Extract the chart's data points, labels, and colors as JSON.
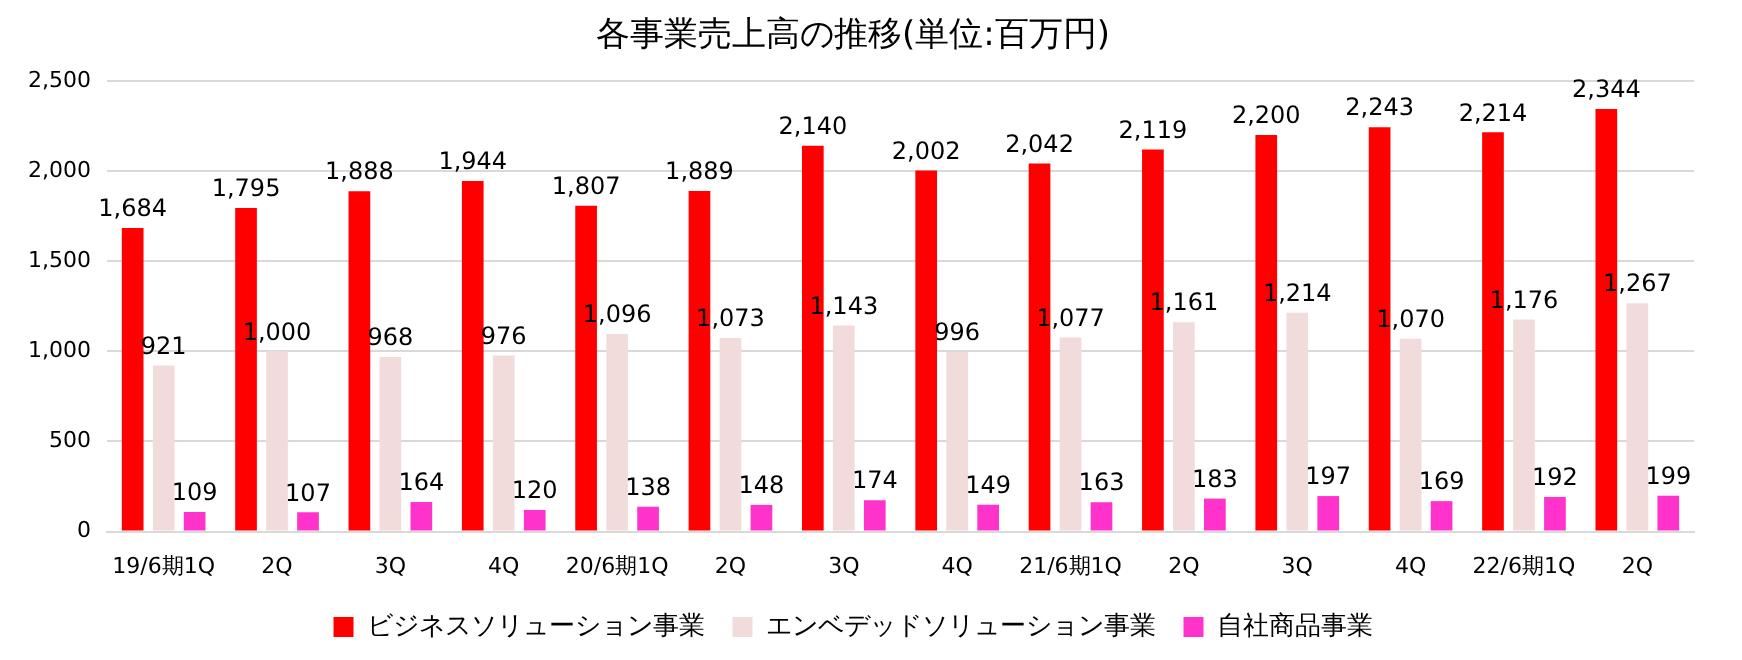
{
  "chart_data": {
    "type": "bar",
    "title": "各事業売上高の推移(単位:百万円)",
    "categories": [
      "19/6期1Q",
      "2Q",
      "3Q",
      "4Q",
      "20/6期1Q",
      "2Q",
      "3Q",
      "4Q",
      "21/6期1Q",
      "2Q",
      "3Q",
      "4Q",
      "22/6期1Q",
      "2Q"
    ],
    "series": [
      {
        "name": "ビジネスソリューション事業",
        "color": "#ff0000",
        "values": [
          1684,
          1795,
          1888,
          1944,
          1807,
          1889,
          2140,
          2002,
          2042,
          2119,
          2200,
          2243,
          2214,
          2344
        ],
        "value_labels": [
          "1,684",
          "1,795",
          "1,888",
          "1,944",
          "1,807",
          "1,889",
          "2,140",
          "2,002",
          "2,042",
          "2,119",
          "2,200",
          "2,243",
          "2,214",
          "2,344"
        ]
      },
      {
        "name": "エンベデッドソリューション事業",
        "color": "#f2dcdb",
        "values": [
          921,
          1000,
          968,
          976,
          1096,
          1073,
          1143,
          996,
          1077,
          1161,
          1214,
          1070,
          1176,
          1267
        ],
        "value_labels": [
          "921",
          "1,000",
          "968",
          "976",
          "1,096",
          "1,073",
          "1,143",
          "996",
          "1,077",
          "1,161",
          "1,214",
          "1,070",
          "1,176",
          "1,267"
        ]
      },
      {
        "name": "自社商品事業",
        "color": "#ff33cc",
        "values": [
          109,
          107,
          164,
          120,
          138,
          148,
          174,
          149,
          163,
          183,
          197,
          169,
          192,
          199
        ],
        "value_labels": [
          "109",
          "107",
          "164",
          "120",
          "138",
          "148",
          "174",
          "149",
          "163",
          "183",
          "197",
          "169",
          "192",
          "199"
        ]
      }
    ],
    "ylim": [
      0,
      2500
    ],
    "yticks": [
      0,
      500,
      {
        "value": 1000,
        "label": "1,000"
      },
      {
        "value": 1500,
        "label": "1,500"
      },
      {
        "value": 2000,
        "label": "2,000"
      },
      {
        "value": 2500,
        "label": "2,500"
      }
    ],
    "grid": "y",
    "legend": "bottom"
  }
}
